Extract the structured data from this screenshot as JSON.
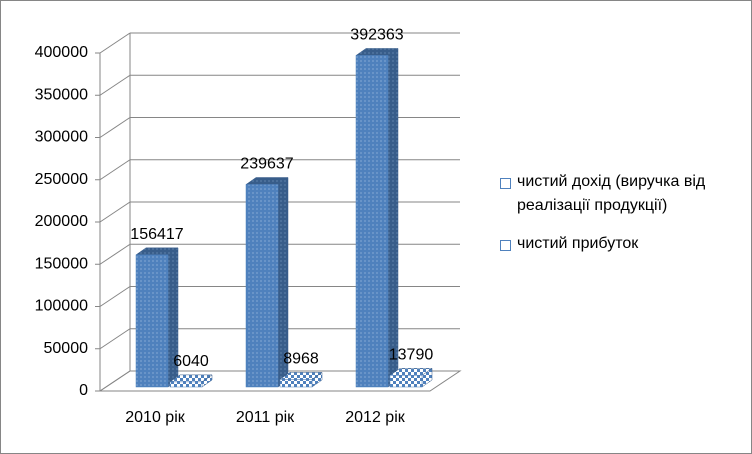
{
  "chart_data": {
    "type": "bar",
    "categories": [
      "2010 рік",
      "2011 рік",
      "2012 рік"
    ],
    "series": [
      {
        "name": "чистий дохід (виручка від реалізації продукції)",
        "color": "#4f81bd",
        "values": [
          156417,
          239637,
          392363
        ]
      },
      {
        "name": "чистий прибуток",
        "color": "#4f81bd",
        "values": [
          6040,
          8968,
          13790
        ]
      }
    ],
    "ylim": [
      0,
      400000
    ],
    "yticks": [
      0,
      50000,
      100000,
      150000,
      200000,
      250000,
      300000,
      350000,
      400000
    ],
    "grid": true,
    "legend": "right"
  }
}
